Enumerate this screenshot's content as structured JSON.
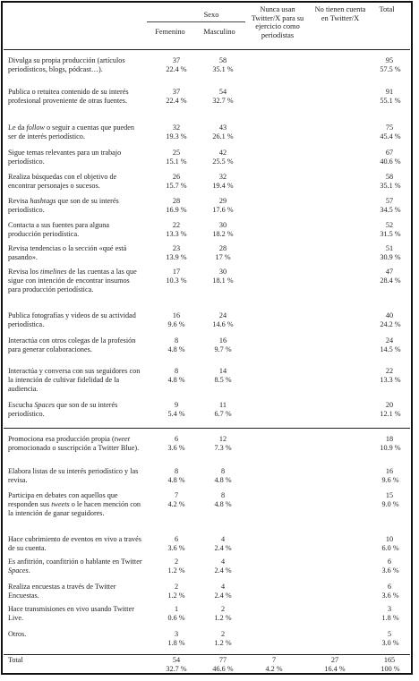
{
  "header": {
    "sexo": "Sexo",
    "femenino": "Femenino",
    "masculino": "Masculino",
    "nunca": "Nunca usan Twitter/X para su ejercicio como periodistas",
    "no_tienen": "No tienen cuenta en Twitter/X",
    "total": "Total"
  },
  "rows_a": [
    {
      "label": "Divulga su propia producción (artículos periodísticos, blogs, pódcast…).",
      "f": "37",
      "fp": "22.4 %",
      "m": "58",
      "mp": "35.1 %",
      "t": "95",
      "tp": "57.5 %"
    },
    {
      "label": "Publica o retuitea contenido de su interés profesional proveniente de otras fuentes.",
      "f": "37",
      "fp": "22.4 %",
      "m": "54",
      "mp": "32.7 %",
      "t": "91",
      "tp": "55.1 %"
    },
    {
      "label": "Le da follow o seguir a cuentas que pueden ser de interés periodístico.",
      "f": "32",
      "fp": "19.3 %",
      "m": "43",
      "mp": "26.1 %",
      "t": "75",
      "tp": "45.4 %"
    },
    {
      "label": "Sigue temas relevantes para un trabajo periodístico.",
      "f": "25",
      "fp": "15.1 %",
      "m": "42",
      "mp": "25.5 %",
      "t": "67",
      "tp": "40.6 %"
    },
    {
      "label": "Realiza búsquedas con el objetivo de encontrar personajes o sucesos.",
      "f": "26",
      "fp": "15.7 %",
      "m": "32",
      "mp": "19.4 %",
      "t": "58",
      "tp": "35.1 %"
    },
    {
      "label": "Revisa hashtags que son de su interés periodístico.",
      "f": "28",
      "fp": "16.9 %",
      "m": "29",
      "mp": "17.6 %",
      "t": "57",
      "tp": "34.5 %"
    },
    {
      "label": "Contacta a sus fuentes para alguna producción periodística.",
      "f": "22",
      "fp": "13.3 %",
      "m": "30",
      "mp": "18.2 %",
      "t": "52",
      "tp": "31.5 %"
    },
    {
      "label": "Revisa tendencias o la sección «qué está pasando».",
      "f": "23",
      "fp": "13.9 %",
      "m": "28",
      "mp": "17 %",
      "t": "51",
      "tp": "30.9 %"
    },
    {
      "label": "Revisa los timelines de las cuentas a las que sigue con intención de encontrar insumos para producción periodística.",
      "f": "17",
      "fp": "10.3 %",
      "m": "30",
      "mp": "18.1 %",
      "t": "47",
      "tp": "28.4 %"
    },
    {
      "label": "Publica fotografías y videos de su actividad periodística.",
      "f": "16",
      "fp": "9.6 %",
      "m": "24",
      "mp": "14.6 %",
      "t": "40",
      "tp": "24.2 %"
    },
    {
      "label": "Interactúa con otros colegas de la profesión para generar colaboraciones.",
      "f": "8",
      "fp": "4.8 %",
      "m": "16",
      "mp": "9.7 %",
      "t": "24",
      "tp": "14.5 %"
    },
    {
      "label": "Interactúa y conversa con sus seguidores con la intención de cultivar fidelidad de la audiencia.",
      "f": "8",
      "fp": "4.8 %",
      "m": "14",
      "mp": "8.5 %",
      "t": "22",
      "tp": "13.3 %"
    },
    {
      "label": "Escucha Spaces que son de su interés periodístico.",
      "f": "9",
      "fp": "5.4 %",
      "m": "11",
      "mp": "6.7 %",
      "t": "20",
      "tp": "12.1 %"
    }
  ],
  "rows_b": [
    {
      "label": "Promociona esa producción propia (tweet promocionado o suscripción a Twitter Blue).",
      "f": "6",
      "fp": "3.6 %",
      "m": "12",
      "mp": "7.3 %",
      "t": "18",
      "tp": "10.9 %"
    },
    {
      "label": "Elabora listas de su interés periodístico y las revisa.",
      "f": "8",
      "fp": "4.8 %",
      "m": "8",
      "mp": "4.8 %",
      "t": "16",
      "tp": "9.6 %"
    },
    {
      "label": "Participa en debates con aquellos que responden sus tweets o le hacen mención con la intención de ganar seguidores.",
      "f": "7",
      "fp": "4.2 %",
      "m": "8",
      "mp": "4.8 %",
      "t": "15",
      "tp": "9.0 %"
    },
    {
      "label": "Hace cubrimiento de eventos en vivo a través de su cuenta.",
      "f": "6",
      "fp": "3.6 %",
      "m": "4",
      "mp": "2.4 %",
      "t": "10",
      "tp": "6.0 %"
    },
    {
      "label": "Es anfitrión, coanfitrión o hablante en Twitter Spaces.",
      "f": "2",
      "fp": "1.2 %",
      "m": "4",
      "mp": "2.4 %",
      "t": "6",
      "tp": "3.6 %"
    },
    {
      "label": "Realiza encuestas a través de Twitter Encuestas.",
      "f": "2",
      "fp": "1.2 %",
      "m": "4",
      "mp": "2.4 %",
      "t": "6",
      "tp": "3.6 %"
    },
    {
      "label": "Hace transmisiones en vivo usando Twitter Live.",
      "f": "1",
      "fp": "0.6 %",
      "m": "2",
      "mp": "1.2 %",
      "t": "3",
      "tp": "1.8 %"
    },
    {
      "label": "Otros.",
      "f": "3",
      "fp": "1.8 %",
      "m": "2",
      "mp": "1.2 %",
      "t": "5",
      "tp": "3.0 %"
    }
  ],
  "total_row": {
    "label": "Total",
    "f": "54",
    "fp": "32.7 %",
    "m": "77",
    "mp": "46.6 %",
    "n": "7",
    "np": "4.2 %",
    "nt": "27",
    "ntp": "16.4 %",
    "t": "165",
    "tp": "100 %"
  }
}
